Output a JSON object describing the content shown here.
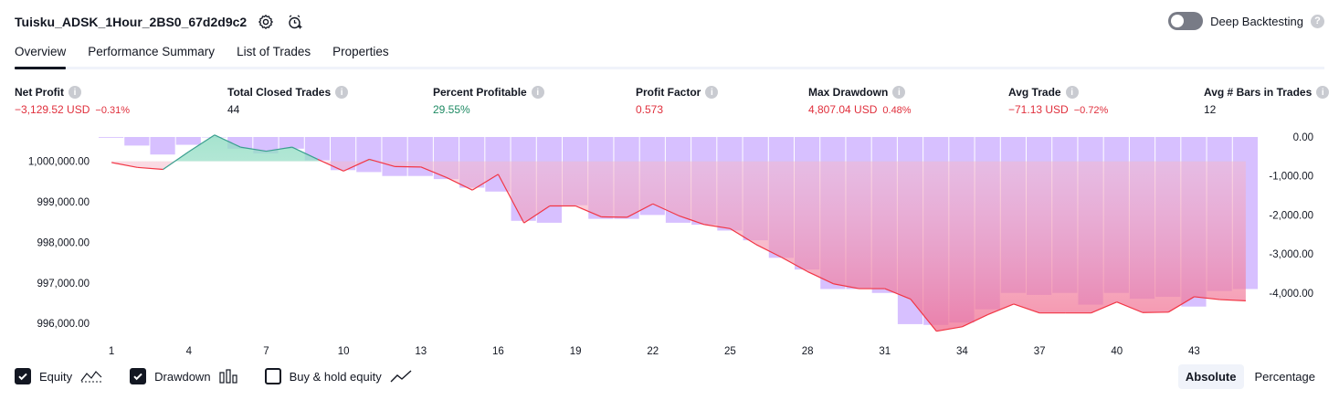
{
  "header": {
    "title": "Tuisku_ADSK_1Hour_2BS0_67d2d9c2",
    "settings_icon": "gear-icon",
    "alert_icon": "alarm-add-icon"
  },
  "deep_backtesting": {
    "label": "Deep Backtesting",
    "enabled": false
  },
  "tabs": [
    {
      "label": "Overview",
      "active": true
    },
    {
      "label": "Performance Summary",
      "active": false
    },
    {
      "label": "List of Trades",
      "active": false
    },
    {
      "label": "Properties",
      "active": false
    }
  ],
  "metrics": {
    "net_profit": {
      "label": "Net Profit",
      "value": "−3,129.52 USD",
      "sub": "−0.31%"
    },
    "total_closed_trades": {
      "label": "Total Closed Trades",
      "value": "44"
    },
    "percent_profitable": {
      "label": "Percent Profitable",
      "value": "29.55%"
    },
    "profit_factor": {
      "label": "Profit Factor",
      "value": "0.573"
    },
    "max_drawdown": {
      "label": "Max Drawdown",
      "value": "4,807.04 USD",
      "sub": "0.48%"
    },
    "avg_trade": {
      "label": "Avg Trade",
      "value": "−71.13 USD",
      "sub": "−0.72%"
    },
    "avg_bars": {
      "label": "Avg # Bars in Trades",
      "value": "12"
    }
  },
  "chart_data": {
    "type": "line",
    "x": [
      1,
      2,
      3,
      4,
      5,
      6,
      7,
      8,
      9,
      10,
      11,
      12,
      13,
      14,
      15,
      16,
      17,
      18,
      19,
      20,
      21,
      22,
      23,
      24,
      25,
      26,
      27,
      28,
      29,
      30,
      31,
      32,
      33,
      34,
      35,
      36,
      37,
      38,
      39,
      40,
      41,
      42,
      43,
      44,
      45
    ],
    "x_ticks": [
      1,
      4,
      7,
      10,
      13,
      16,
      19,
      22,
      25,
      28,
      31,
      34,
      37,
      40,
      43
    ],
    "series": [
      {
        "name": "Equity",
        "axis": "left",
        "color": "#f23645",
        "values": [
          999970,
          999850,
          999800,
          1000240,
          1000650,
          1000350,
          1000250,
          1000350,
          1000050,
          999760,
          1000050,
          999870,
          999860,
          999600,
          999290,
          999680,
          998480,
          998900,
          998900,
          998630,
          998620,
          998950,
          998660,
          998440,
          998340,
          997950,
          997630,
          997280,
          996980,
          996860,
          996860,
          996600,
          995810,
          995920,
          996220,
          996480,
          996260,
          996260,
          996260,
          996530,
          996270,
          996280,
          996660,
          996590,
          996560
        ]
      },
      {
        "name": "Drawdown",
        "axis": "right",
        "color": "#b39ddb",
        "values": [
          -20,
          -220,
          -450,
          -200,
          0,
          -300,
          -420,
          -300,
          -600,
          -850,
          -900,
          -1000,
          -1000,
          -1080,
          -1300,
          -1400,
          -2150,
          -2200,
          -1750,
          -2100,
          -2100,
          -2000,
          -2200,
          -2250,
          -2400,
          -2650,
          -3100,
          -3400,
          -3900,
          -3900,
          -4000,
          -4800,
          -4820,
          -4760,
          -4420,
          -4000,
          -4050,
          -4000,
          -4300,
          -4000,
          -4150,
          -4100,
          -4350,
          -3950,
          -3900
        ]
      }
    ],
    "y_left": {
      "ticks": [
        "1,000,000.00",
        "999,000.00",
        "998,000.00",
        "997,000.00",
        "996,000.00"
      ],
      "ylim": [
        995600,
        1000600
      ]
    },
    "y_right": {
      "ticks": [
        "0.00",
        "-1,000.00",
        "-2,000.00",
        "-3,000.00",
        "-4,000.00"
      ],
      "ylim": [
        -5200,
        0
      ]
    },
    "grid": false
  },
  "legend": [
    {
      "label": "Equity",
      "checked": true,
      "icon": "equity-line-icon"
    },
    {
      "label": "Drawdown",
      "checked": true,
      "icon": "drawdown-bars-icon"
    },
    {
      "label": "Buy & hold equity",
      "checked": false,
      "icon": "buy-hold-line-icon"
    }
  ],
  "modes": {
    "absolute": "Absolute",
    "percentage": "Percentage",
    "active": "Absolute"
  },
  "colors": {
    "loss": "#e02f3c",
    "profit": "#1e8a63",
    "drawdown": "#c7a8ff",
    "equity_area_neg": "#f7a1b5",
    "equity_area_pos": "#a6e3cf"
  }
}
